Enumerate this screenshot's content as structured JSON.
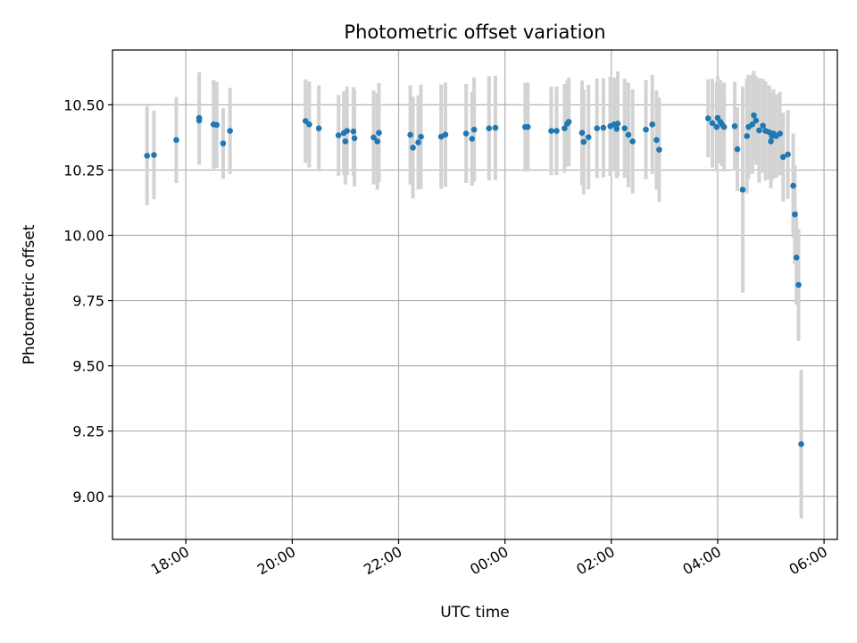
{
  "chart_data": {
    "type": "scatter",
    "title": "Photometric offset variation",
    "xlabel": "UTC time",
    "ylabel": "Photometric offset",
    "x_tick_labels": [
      "18:00",
      "20:00",
      "22:00",
      "00:00",
      "02:00",
      "04:00",
      "06:00"
    ],
    "x_tick_hours": [
      18,
      20,
      22,
      24,
      26,
      28,
      30
    ],
    "y_tick_labels": [
      "9.00",
      "9.25",
      "9.50",
      "9.75",
      "10.00",
      "10.25",
      "10.50"
    ],
    "y_tick_values": [
      9.0,
      9.25,
      9.5,
      9.75,
      10.0,
      10.25,
      10.5
    ],
    "xlim_hours": [
      16.62,
      30.25
    ],
    "ylim": [
      8.835,
      10.71
    ],
    "grid": true,
    "colors": {
      "point": "#1f77b4",
      "errorbar": "#d3d3d3",
      "grid": "#b0b0b0"
    },
    "series": [
      {
        "x_hours": [
          17.27,
          17.4,
          17.82,
          18.25,
          18.25,
          18.52,
          18.58,
          18.7,
          18.83,
          20.25,
          20.32,
          20.5,
          20.87,
          20.97,
          21.0,
          21.03,
          21.15,
          21.17,
          21.53,
          21.6,
          21.63,
          22.22,
          22.27,
          22.37,
          22.42,
          22.8,
          22.88,
          23.27,
          23.38,
          23.42,
          23.7,
          23.82,
          24.38,
          24.43,
          24.87,
          24.97,
          25.12,
          25.17,
          25.2,
          25.45,
          25.48,
          25.57,
          25.73,
          25.85,
          25.98,
          26.05,
          26.1,
          26.12,
          26.25,
          26.32,
          26.4,
          26.65,
          26.77,
          26.85,
          26.9,
          27.82,
          27.9,
          27.98,
          28.0,
          28.05,
          28.08,
          28.12,
          28.32,
          28.37,
          28.47,
          28.55,
          28.58,
          28.65,
          28.68,
          28.72,
          28.78,
          28.85,
          28.9,
          28.97,
          29.0,
          29.02,
          29.05,
          29.1,
          29.17,
          29.23,
          29.32,
          29.42,
          29.45,
          29.48,
          29.52,
          29.57
        ],
        "y": [
          10.305,
          10.308,
          10.365,
          10.45,
          10.44,
          10.425,
          10.423,
          10.352,
          10.4,
          10.438,
          10.425,
          10.41,
          10.383,
          10.392,
          10.36,
          10.4,
          10.398,
          10.372,
          10.375,
          10.36,
          10.393,
          10.385,
          10.336,
          10.356,
          10.378,
          10.378,
          10.386,
          10.39,
          10.37,
          10.405,
          10.41,
          10.412,
          10.415,
          10.415,
          10.4,
          10.4,
          10.41,
          10.428,
          10.435,
          10.393,
          10.358,
          10.376,
          10.41,
          10.412,
          10.418,
          10.425,
          10.408,
          10.428,
          10.41,
          10.385,
          10.36,
          10.405,
          10.425,
          10.365,
          10.328,
          10.448,
          10.43,
          10.415,
          10.45,
          10.435,
          10.425,
          10.415,
          10.418,
          10.33,
          10.175,
          10.38,
          10.415,
          10.425,
          10.46,
          10.44,
          10.402,
          10.42,
          10.4,
          10.395,
          10.36,
          10.38,
          10.39,
          10.38,
          10.39,
          10.3,
          10.31,
          10.19,
          10.08,
          9.915,
          9.81,
          9.2
        ],
        "yerr": [
          0.19,
          0.17,
          0.165,
          0.175,
          0.17,
          0.17,
          0.165,
          0.135,
          0.165,
          0.16,
          0.165,
          0.165,
          0.155,
          0.16,
          0.165,
          0.17,
          0.17,
          0.185,
          0.18,
          0.185,
          0.19,
          0.19,
          0.195,
          0.18,
          0.2,
          0.2,
          0.2,
          0.19,
          0.18,
          0.2,
          0.2,
          0.2,
          0.17,
          0.17,
          0.17,
          0.17,
          0.17,
          0.165,
          0.17,
          0.2,
          0.2,
          0.2,
          0.19,
          0.19,
          0.19,
          0.18,
          0.19,
          0.2,
          0.19,
          0.2,
          0.2,
          0.19,
          0.19,
          0.19,
          0.2,
          0.15,
          0.17,
          0.17,
          0.16,
          0.16,
          0.16,
          0.17,
          0.17,
          0.16,
          0.395,
          0.22,
          0.2,
          0.19,
          0.17,
          0.17,
          0.2,
          0.18,
          0.19,
          0.18,
          0.18,
          0.17,
          0.17,
          0.16,
          0.16,
          0.17,
          0.17,
          0.2,
          0.19,
          0.18,
          0.215,
          0.285
        ]
      }
    ]
  }
}
